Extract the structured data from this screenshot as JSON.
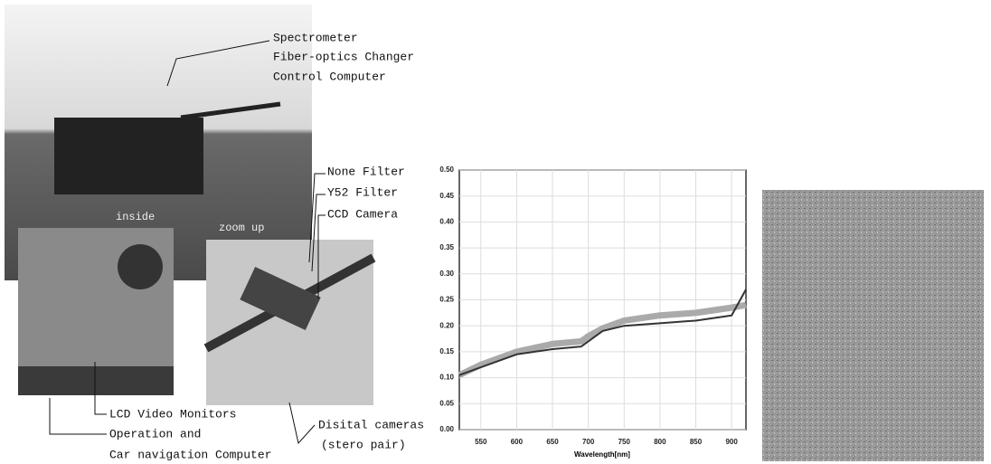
{
  "figure": {
    "labels": [
      "Spectrometer",
      "Fiber-optics Changer",
      "Control Computer",
      "inside",
      "zoom up",
      "None Filter",
      "Y52 Filter",
      "CCD Camera",
      "LCD Video Monitors",
      "Operation and",
      "Car navigation Computer",
      "Disital cameras",
      "(stero pair)"
    ]
  },
  "chart_data": {
    "type": "line",
    "xlabel": "Wavelength[nm]",
    "x": [
      520,
      550,
      600,
      650,
      690,
      700,
      720,
      750,
      800,
      850,
      900,
      920
    ],
    "series": [
      {
        "color": "#aaaaaa",
        "values": [
          0.105,
          0.125,
          0.15,
          0.165,
          0.17,
          0.18,
          0.195,
          0.21,
          0.22,
          0.225,
          0.235,
          0.24
        ]
      },
      {
        "color": "#333333",
        "values": [
          0.105,
          0.12,
          0.145,
          0.155,
          0.16,
          0.17,
          0.19,
          0.2,
          0.205,
          0.21,
          0.22,
          0.27
        ]
      }
    ],
    "xlim": [
      520,
      920
    ],
    "xticks": [
      550,
      600,
      650,
      700,
      750,
      800,
      850,
      900
    ],
    "ylim": [
      0,
      0.5
    ],
    "yticks": [
      {
        "value": 0,
        "label": "0.00"
      },
      {
        "value": 0.05,
        "label": "0.05"
      },
      {
        "value": 0.1,
        "label": "0.10"
      },
      {
        "value": 0.15,
        "label": "0.15"
      },
      {
        "value": 0.2,
        "label": "0.20"
      },
      {
        "value": 0.25,
        "label": "0.25"
      },
      {
        "value": 0.3,
        "label": "0.30"
      },
      {
        "value": 0.35,
        "label": "0.35"
      },
      {
        "value": 0.4,
        "label": "0.40"
      },
      {
        "value": 0.45,
        "label": "0.45"
      },
      {
        "value": 0.5,
        "label": "0.50"
      }
    ],
    "grid": true
  }
}
